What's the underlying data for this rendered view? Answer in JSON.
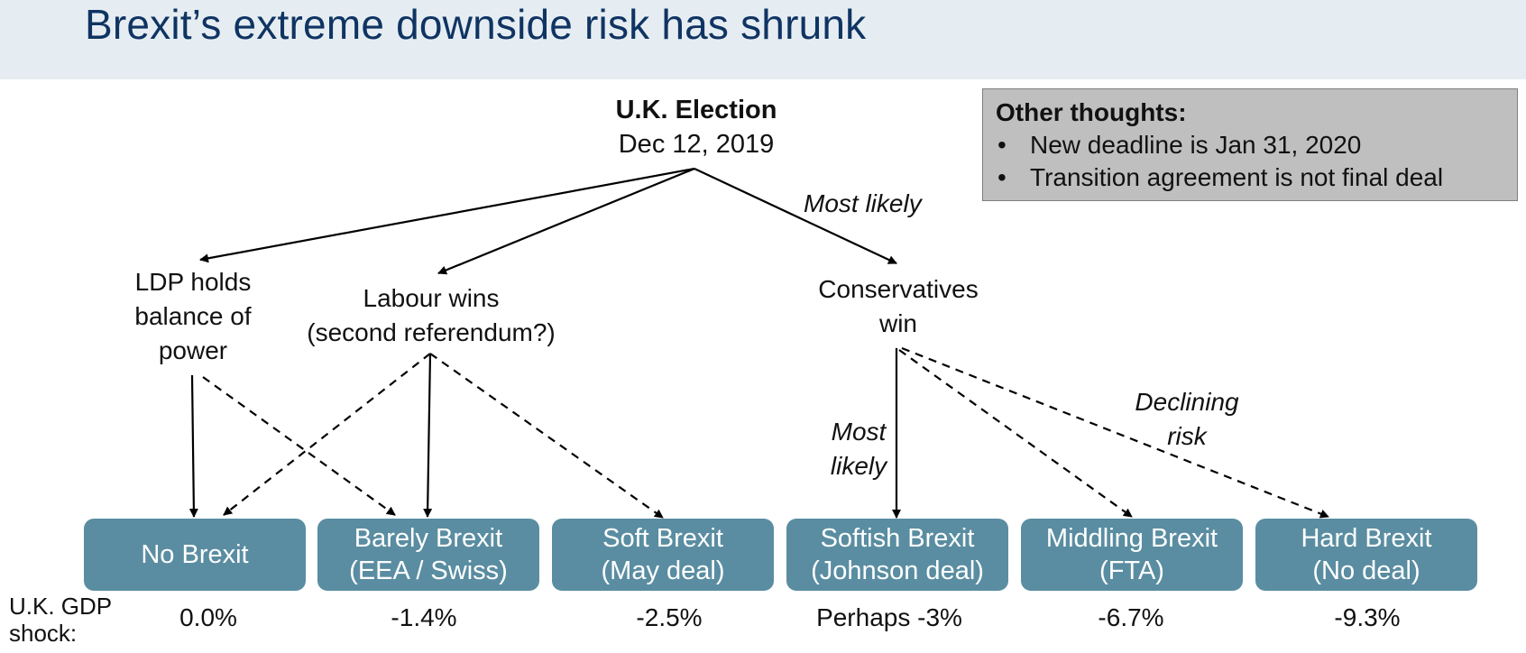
{
  "title": "Brexit’s extreme downside risk has shrunk",
  "election": {
    "title": "U.K. Election",
    "date": "Dec 12, 2019"
  },
  "other_thoughts": {
    "title": "Other thoughts:",
    "bullets": [
      "New deadline is Jan 31, 2020",
      "Transition agreement is not final deal"
    ]
  },
  "scenarios": {
    "ldp": [
      "LDP holds",
      "balance of",
      "power"
    ],
    "labour": [
      "Labour wins",
      "(second referendum?)"
    ],
    "conservatives": [
      "Conservatives",
      "win"
    ]
  },
  "annotations": {
    "most_likely_top": "Most likely",
    "most_likely_left": [
      "Most",
      "likely"
    ],
    "declining_risk": [
      "Declining",
      "risk"
    ]
  },
  "outcomes": [
    {
      "line1": "No Brexit",
      "line2": "",
      "gdp": "0.0%"
    },
    {
      "line1": "Barely Brexit",
      "line2": "(EEA / Swiss)",
      "gdp": "-1.4%"
    },
    {
      "line1": "Soft Brexit",
      "line2": "(May deal)",
      "gdp": "-2.5%"
    },
    {
      "line1": "Softish Brexit",
      "line2": "(Johnson deal)",
      "gdp": "Perhaps -3%"
    },
    {
      "line1": "Middling Brexit",
      "line2": "(FTA)",
      "gdp": "-6.7%"
    },
    {
      "line1": "Hard Brexit",
      "line2": "(No deal)",
      "gdp": "-9.3%"
    }
  ],
  "gdp_label": [
    "U.K. GDP",
    "shock:"
  ],
  "colors": {
    "title": "#0f3463",
    "header_band": "#e6edf2",
    "outcome_box": "#5a8da1",
    "note_box": "#bfbfbf"
  }
}
